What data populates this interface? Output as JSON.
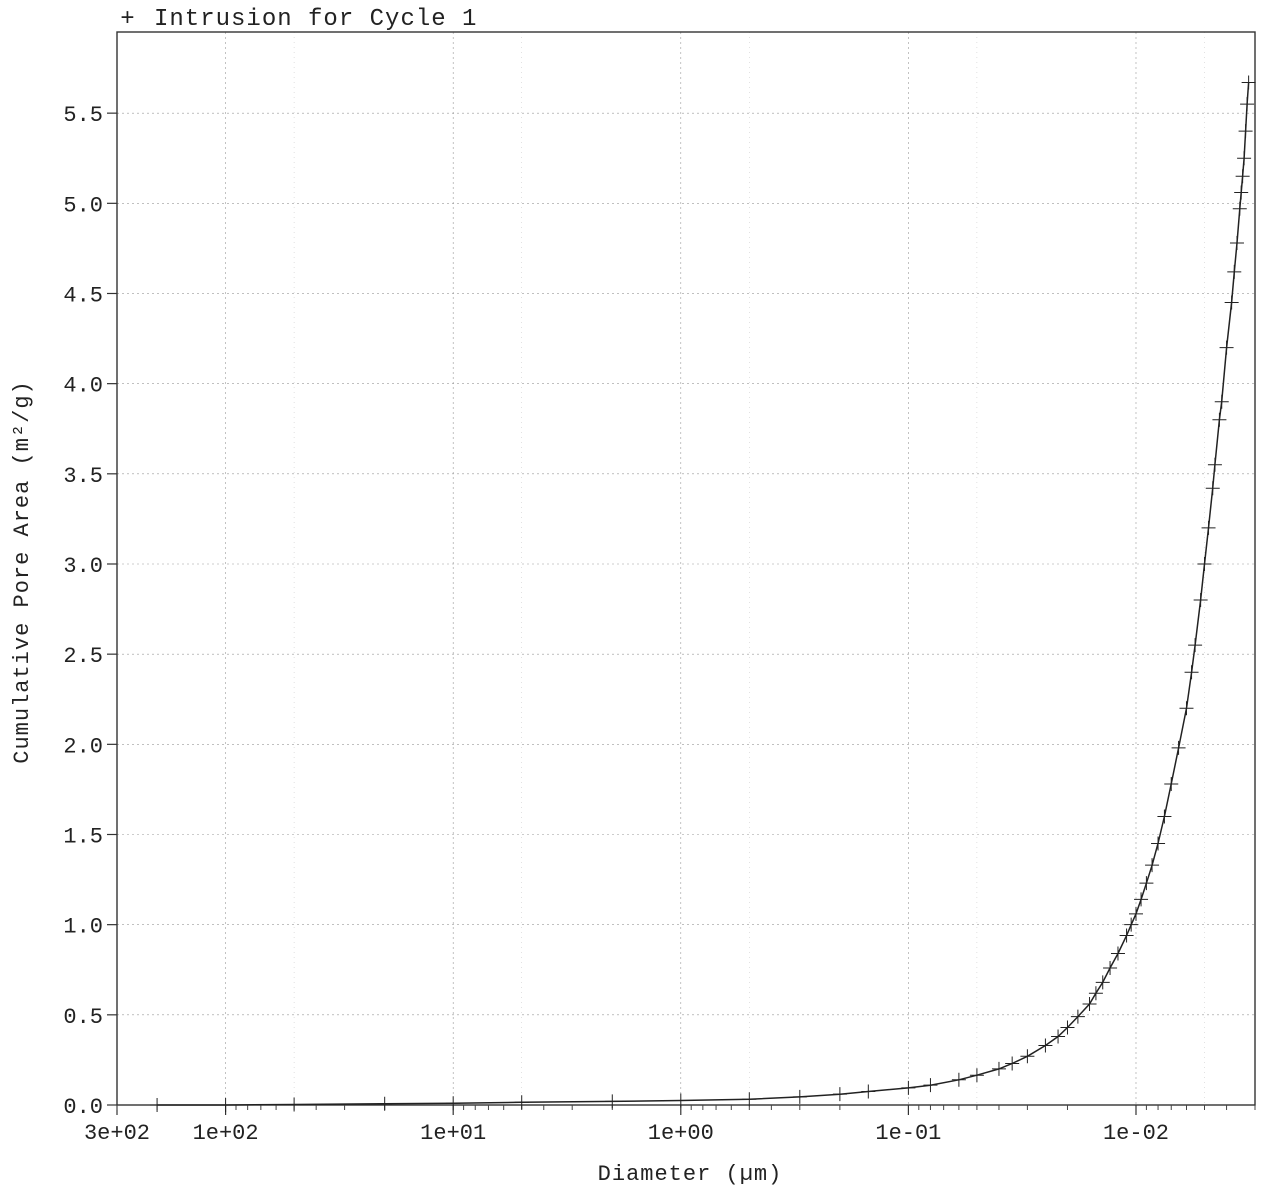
{
  "legend": {
    "symbol": "+",
    "label": "Intrusion for Cycle 1"
  },
  "chart_data": {
    "type": "scatter",
    "title": "",
    "xlabel": "Diameter (µm)",
    "ylabel": "Cumulative Pore Area (m²/g)",
    "x_scale": "log",
    "x_reversed": true,
    "xlim": [
      300,
      0.003
    ],
    "ylim": [
      0,
      5.95
    ],
    "x_ticks": [
      {
        "value": 300,
        "label": "3e+02"
      },
      {
        "value": 100,
        "label": "1e+02"
      },
      {
        "value": 10,
        "label": "1e+01"
      },
      {
        "value": 1,
        "label": "1e+00"
      },
      {
        "value": 0.1,
        "label": "1e-01"
      },
      {
        "value": 0.01,
        "label": "1e-02"
      }
    ],
    "y_ticks": [
      {
        "value": 0,
        "label": "0.0"
      },
      {
        "value": 0.5,
        "label": "0.5"
      },
      {
        "value": 1.0,
        "label": "1.0"
      },
      {
        "value": 1.5,
        "label": "1.5"
      },
      {
        "value": 2.0,
        "label": "2.0"
      },
      {
        "value": 2.5,
        "label": "2.5"
      },
      {
        "value": 3.0,
        "label": "3.0"
      },
      {
        "value": 3.5,
        "label": "3.5"
      },
      {
        "value": 4.0,
        "label": "4.0"
      },
      {
        "value": 4.5,
        "label": "4.5"
      },
      {
        "value": 5.0,
        "label": "5.0"
      },
      {
        "value": 5.5,
        "label": "5.5"
      }
    ],
    "grid": true,
    "legend_position": "top-left",
    "marker": "+",
    "line_color": "#222222",
    "series": [
      {
        "name": "Intrusion for Cycle 1",
        "points": [
          [
            200,
            0.0
          ],
          [
            100,
            0.0
          ],
          [
            50,
            0.003
          ],
          [
            20,
            0.007
          ],
          [
            10,
            0.01
          ],
          [
            5,
            0.015
          ],
          [
            2,
            0.02
          ],
          [
            1,
            0.025
          ],
          [
            0.5,
            0.032
          ],
          [
            0.3,
            0.045
          ],
          [
            0.2,
            0.06
          ],
          [
            0.15,
            0.075
          ],
          [
            0.1,
            0.095
          ],
          [
            0.08,
            0.11
          ],
          [
            0.06,
            0.14
          ],
          [
            0.05,
            0.165
          ],
          [
            0.04,
            0.2
          ],
          [
            0.035,
            0.23
          ],
          [
            0.03,
            0.27
          ],
          [
            0.025,
            0.33
          ],
          [
            0.022,
            0.38
          ],
          [
            0.02,
            0.43
          ],
          [
            0.018,
            0.49
          ],
          [
            0.016,
            0.56
          ],
          [
            0.015,
            0.62
          ],
          [
            0.014,
            0.68
          ],
          [
            0.013,
            0.76
          ],
          [
            0.012,
            0.84
          ],
          [
            0.011,
            0.94
          ],
          [
            0.0105,
            1.0
          ],
          [
            0.01,
            1.06
          ],
          [
            0.0095,
            1.14
          ],
          [
            0.009,
            1.23
          ],
          [
            0.0085,
            1.33
          ],
          [
            0.008,
            1.45
          ],
          [
            0.0075,
            1.6
          ],
          [
            0.007,
            1.78
          ],
          [
            0.0065,
            1.98
          ],
          [
            0.006,
            2.2
          ],
          [
            0.0057,
            2.4
          ],
          [
            0.0055,
            2.55
          ],
          [
            0.0052,
            2.8
          ],
          [
            0.005,
            3.0
          ],
          [
            0.0048,
            3.2
          ],
          [
            0.0046,
            3.42
          ],
          [
            0.0045,
            3.55
          ],
          [
            0.0043,
            3.8
          ],
          [
            0.0042,
            3.9
          ],
          [
            0.004,
            4.2
          ],
          [
            0.0038,
            4.45
          ],
          [
            0.0037,
            4.62
          ],
          [
            0.0036,
            4.78
          ],
          [
            0.0035,
            4.97
          ],
          [
            0.00345,
            5.06
          ],
          [
            0.0034,
            5.15
          ],
          [
            0.00335,
            5.25
          ],
          [
            0.0033,
            5.4
          ],
          [
            0.00325,
            5.55
          ],
          [
            0.0032,
            5.67
          ]
        ]
      }
    ]
  }
}
